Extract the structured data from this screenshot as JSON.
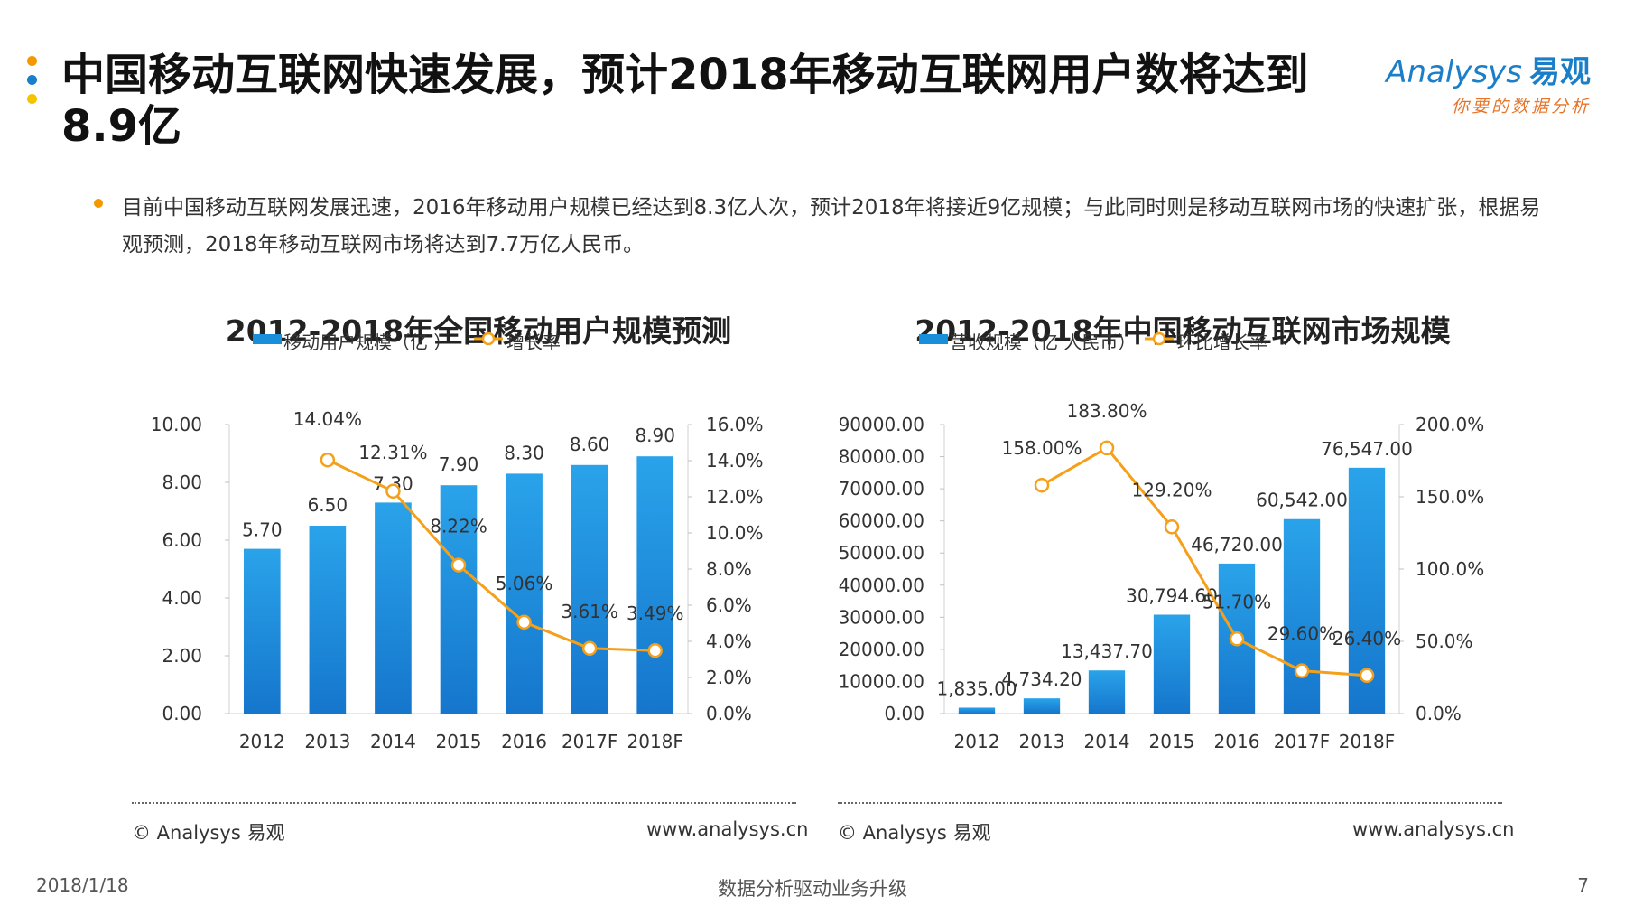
{
  "slide": {
    "title": "中国移动互联网快速发展，预计2018年移动互联网用户数将达到8.9亿",
    "intro": "目前中国移动互联网发展迅速，2016年移动用户规模已经达到8.3亿人次，预计2018年将接近9亿规模；与此同时则是移动互联网市场的快速扩张，根据易观预测，2018年移动互联网市场将达到7.7万亿人民币。",
    "logo_brand": "Analysys",
    "logo_cn": "易观",
    "logo_slogan": "你要的数据分析",
    "date": "2018/1/18",
    "footer_center": "数据分析驱动业务升级",
    "page_number": "7",
    "source_left": "© Analysys 易观",
    "url_left": "www.analysys.cn",
    "source_right": "© Analysys 易观",
    "url_right": "www.analysys.cn",
    "colors": {
      "bar": "#1a8fd9",
      "line": "#f5a01a",
      "dot1": "#f39800",
      "dot2": "#1a7fc8",
      "dot3": "#f5c400"
    }
  },
  "chart_data": [
    {
      "type": "bar",
      "title": "2012-2018年全国移动用户规模预测",
      "categories": [
        "2012",
        "2013",
        "2014",
        "2015",
        "2016",
        "2017F",
        "2018F"
      ],
      "series": [
        {
          "name": "移动用户规模（亿 ）",
          "type": "bar",
          "axis": "left",
          "values": [
            5.7,
            6.5,
            7.3,
            7.9,
            8.3,
            8.6,
            8.9
          ],
          "labels": [
            "5.70",
            "6.50",
            "7.30",
            "7.90",
            "8.30",
            "8.60",
            "8.90"
          ]
        },
        {
          "name": "增长率",
          "type": "line",
          "axis": "right",
          "values": [
            null,
            14.04,
            12.31,
            8.22,
            5.06,
            3.61,
            3.49
          ],
          "labels": [
            "",
            "14.04%",
            "12.31%",
            "8.22%",
            "5.06%",
            "3.61%",
            "3.49%"
          ]
        }
      ],
      "ylim": [
        0,
        10
      ],
      "yticks": [
        "0.00",
        "2.00",
        "4.00",
        "6.00",
        "8.00",
        "10.00"
      ],
      "y2lim": [
        0,
        16
      ],
      "y2ticks": [
        "0.0%",
        "2.0%",
        "4.0%",
        "6.0%",
        "8.0%",
        "10.0%",
        "12.0%",
        "14.0%",
        "16.0%"
      ],
      "legend_position": "top"
    },
    {
      "type": "bar",
      "title": "2012-2018年中国移动互联网市场规模",
      "categories": [
        "2012",
        "2013",
        "2014",
        "2015",
        "2016",
        "2017F",
        "2018F"
      ],
      "series": [
        {
          "name": "营收规模（亿 人民币）",
          "type": "bar",
          "axis": "left",
          "values": [
            1835.0,
            4734.2,
            13437.7,
            30794.6,
            46720.0,
            60542.0,
            76547.0
          ],
          "labels": [
            "1,835.00",
            "4,734.20",
            "13,437.70",
            "30,794.60",
            "46,720.00",
            "60,542.00",
            "76,547.00"
          ]
        },
        {
          "name": "环比增长率",
          "type": "line",
          "axis": "right",
          "values": [
            null,
            158.0,
            183.8,
            129.2,
            51.7,
            29.6,
            26.4
          ],
          "labels": [
            "",
            "158.00%",
            "183.80%",
            "129.20%",
            "51.70%",
            "29.60%",
            "26.40%"
          ]
        }
      ],
      "ylim": [
        0,
        90000
      ],
      "yticks": [
        "0.00",
        "10000.00",
        "20000.00",
        "30000.00",
        "40000.00",
        "50000.00",
        "60000.00",
        "70000.00",
        "80000.00",
        "90000.00"
      ],
      "y2lim": [
        0,
        200
      ],
      "y2ticks": [
        "0.0%",
        "50.0%",
        "100.0%",
        "150.0%",
        "200.0%"
      ],
      "legend_position": "top"
    }
  ]
}
